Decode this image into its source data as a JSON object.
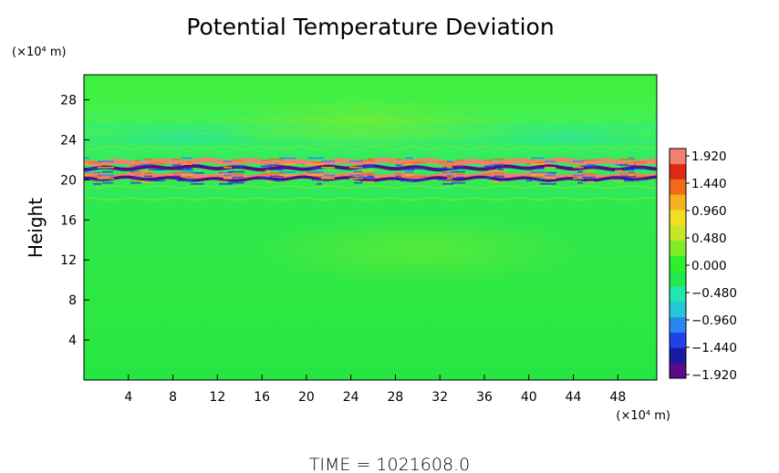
{
  "chart_data": {
    "type": "heatmap",
    "title": "Potential Temperature Deviation",
    "ylabel": "Height",
    "x_unit_label": "(×10⁴ m)",
    "y_unit_label": "(×10⁴ m)",
    "x_ticks": [
      4,
      8,
      12,
      16,
      20,
      24,
      28,
      32,
      36,
      40,
      44,
      48
    ],
    "y_ticks": [
      4,
      8,
      12,
      16,
      20,
      24,
      28
    ],
    "xlim": [
      0,
      51.5
    ],
    "ylim": [
      0,
      30.5
    ],
    "colorbar": {
      "labels": [
        "1.920",
        "1.440",
        "0.960",
        "0.480",
        "0.000",
        "−0.480",
        "−0.960",
        "−1.440",
        "−1.920"
      ],
      "vmin": -1.92,
      "vmax": 1.92,
      "colors": [
        "#5a0a8c",
        "#1a1aa0",
        "#2040e8",
        "#2a86f0",
        "#22c8d8",
        "#22e6b0",
        "#22e84c",
        "#2cf02c",
        "#7ced28",
        "#c8e628",
        "#f0e020",
        "#f6b21c",
        "#f26a18",
        "#e02a14",
        "#f08070"
      ]
    },
    "background_value": 0.1,
    "bands": [
      {
        "y_center": 21.8,
        "value": 1.9,
        "thickness": 0.5
      },
      {
        "y_center": 21.2,
        "value": -1.9,
        "thickness": 0.35
      },
      {
        "y_center": 20.4,
        "value": 1.9,
        "thickness": 0.5
      },
      {
        "y_center": 20.1,
        "value": -1.7,
        "thickness": 0.3
      }
    ]
  },
  "footer": {
    "time_label": "TIME  =  1021608.0"
  }
}
